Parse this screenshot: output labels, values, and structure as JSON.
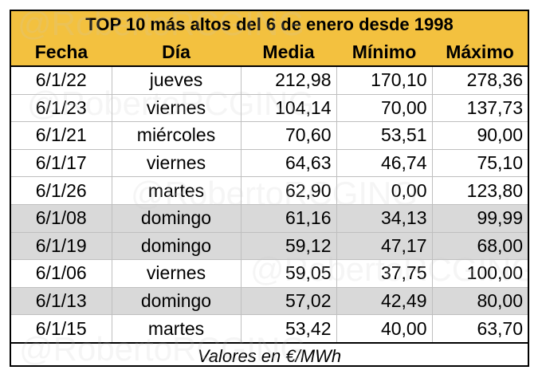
{
  "title": "TOP 10 más altos del 6 de enero desde 1998",
  "headers": [
    "Fecha",
    "Día",
    "Media",
    "Mínimo",
    "Máximo"
  ],
  "rows": [
    {
      "fecha": "6/1/22",
      "dia": "jueves",
      "media": "212,98",
      "minimo": "170,10",
      "maximo": "278,36",
      "shaded": false
    },
    {
      "fecha": "6/1/23",
      "dia": "viernes",
      "media": "104,14",
      "minimo": "70,00",
      "maximo": "137,73",
      "shaded": false
    },
    {
      "fecha": "6/1/21",
      "dia": "miércoles",
      "media": "70,60",
      "minimo": "53,51",
      "maximo": "90,00",
      "shaded": false
    },
    {
      "fecha": "6/1/17",
      "dia": "viernes",
      "media": "64,63",
      "minimo": "46,74",
      "maximo": "75,10",
      "shaded": false
    },
    {
      "fecha": "6/1/26",
      "dia": "martes",
      "media": "62,90",
      "minimo": "0,00",
      "maximo": "123,80",
      "shaded": false
    },
    {
      "fecha": "6/1/08",
      "dia": "domingo",
      "media": "61,16",
      "minimo": "34,13",
      "maximo": "99,99",
      "shaded": true
    },
    {
      "fecha": "6/1/19",
      "dia": "domingo",
      "media": "59,12",
      "minimo": "47,17",
      "maximo": "68,00",
      "shaded": true
    },
    {
      "fecha": "6/1/06",
      "dia": "viernes",
      "media": "59,05",
      "minimo": "37,75",
      "maximo": "100,00",
      "shaded": false
    },
    {
      "fecha": "6/1/13",
      "dia": "domingo",
      "media": "57,02",
      "minimo": "42,49",
      "maximo": "80,00",
      "shaded": true
    },
    {
      "fecha": "6/1/15",
      "dia": "martes",
      "media": "53,42",
      "minimo": "40,00",
      "maximo": "63,70",
      "shaded": false
    }
  ],
  "footer": "Valores en €/MWh",
  "watermark": "@RobertoRCGING",
  "colors": {
    "header_bg": "#f3c13f",
    "shaded_row": "#d9d9d9"
  }
}
